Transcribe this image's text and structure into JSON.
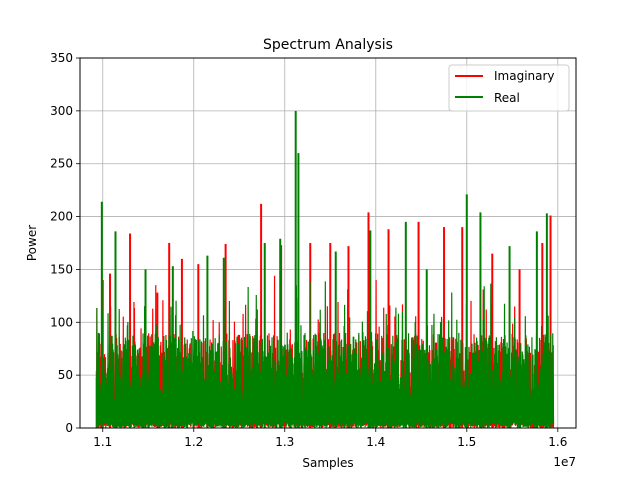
{
  "chart_data": {
    "type": "line",
    "title": "Spectrum Analysis",
    "xlabel": "Samples",
    "ylabel": "Power",
    "x_offset_label": "1e7",
    "xlim": [
      10750000,
      16200000
    ],
    "ylim": [
      0,
      350
    ],
    "x_ticks": [
      {
        "value": 11000000,
        "label": "1.1"
      },
      {
        "value": 12000000,
        "label": "1.2"
      },
      {
        "value": 13000000,
        "label": "1.3"
      },
      {
        "value": 14000000,
        "label": "1.4"
      },
      {
        "value": 15000000,
        "label": "1.5"
      },
      {
        "value": 16000000,
        "label": "1.6"
      }
    ],
    "y_ticks": [
      {
        "value": 0,
        "label": "0"
      },
      {
        "value": 50,
        "label": "50"
      },
      {
        "value": 100,
        "label": "100"
      },
      {
        "value": 150,
        "label": "150"
      },
      {
        "value": 200,
        "label": "200"
      },
      {
        "value": 250,
        "label": "250"
      },
      {
        "value": 300,
        "label": "300"
      },
      {
        "value": 350,
        "label": "350"
      }
    ],
    "grid": true,
    "legend_position": "top-right",
    "series": [
      {
        "name": "Imaginary",
        "color": "#ff0000",
        "x_start": 10930000,
        "x_end": 15950000,
        "peaks": [
          [
            11000000,
            140
          ],
          [
            11080000,
            146
          ],
          [
            11300000,
            184
          ],
          [
            11600000,
            128
          ],
          [
            11730000,
            175
          ],
          [
            11870000,
            160
          ],
          [
            12050000,
            155
          ],
          [
            12350000,
            174
          ],
          [
            12740000,
            212
          ],
          [
            12960000,
            173
          ],
          [
            13280000,
            175
          ],
          [
            13500000,
            175
          ],
          [
            13700000,
            172
          ],
          [
            13920000,
            204
          ],
          [
            14140000,
            188
          ],
          [
            14470000,
            195
          ],
          [
            14750000,
            190
          ],
          [
            14950000,
            190
          ],
          [
            15280000,
            165
          ],
          [
            15580000,
            150
          ],
          [
            15830000,
            175
          ],
          [
            15920000,
            201
          ]
        ]
      },
      {
        "name": "Real",
        "color": "#008000",
        "x_start": 10930000,
        "x_end": 15950000,
        "peaks": [
          [
            10990000,
            214
          ],
          [
            11140000,
            186
          ],
          [
            11470000,
            150
          ],
          [
            11770000,
            153
          ],
          [
            12150000,
            163
          ],
          [
            12330000,
            161
          ],
          [
            12780000,
            175
          ],
          [
            12950000,
            179
          ],
          [
            13120000,
            300
          ],
          [
            13150000,
            260
          ],
          [
            13560000,
            167
          ],
          [
            13940000,
            187
          ],
          [
            14330000,
            195
          ],
          [
            14560000,
            150
          ],
          [
            15000000,
            221
          ],
          [
            15150000,
            204
          ],
          [
            15470000,
            172
          ],
          [
            15770000,
            186
          ],
          [
            15880000,
            203
          ]
        ]
      }
    ]
  }
}
